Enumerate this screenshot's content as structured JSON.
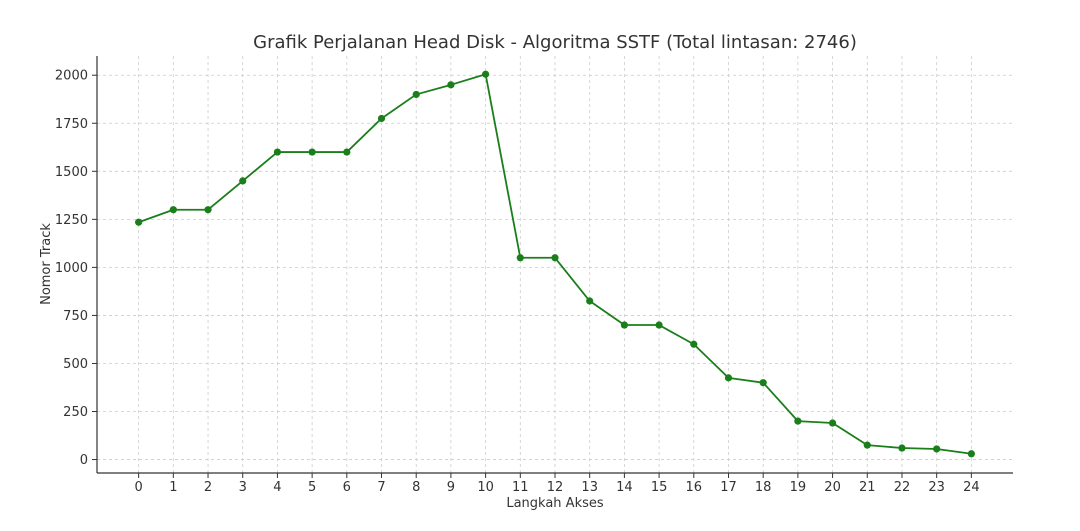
{
  "chart_data": {
    "type": "line",
    "title": "Grafik Perjalanan Head Disk - Algoritma SSTF (Total lintasan: 2746)",
    "xlabel": "Langkah Akses",
    "ylabel": "Nomor Track",
    "x": [
      0,
      1,
      2,
      3,
      4,
      5,
      6,
      7,
      8,
      9,
      10,
      11,
      12,
      13,
      14,
      15,
      16,
      17,
      18,
      19,
      20,
      21,
      22,
      23,
      24
    ],
    "x_tick_labels": [
      "0",
      "1",
      "2",
      "3",
      "4",
      "5",
      "6",
      "7",
      "8",
      "9",
      "10",
      "11",
      "12",
      "13",
      "14",
      "15",
      "16",
      "17",
      "18",
      "19",
      "20",
      "21",
      "22",
      "23",
      "24"
    ],
    "y_tick_values": [
      0,
      250,
      500,
      750,
      1000,
      1250,
      1500,
      1750,
      2000
    ],
    "y_tick_labels": [
      "0",
      "250",
      "500",
      "750",
      "1000",
      "1250",
      "1500",
      "1750",
      "2000"
    ],
    "xlim": [
      -1.2,
      25.2
    ],
    "ylim": [
      -70,
      2100
    ],
    "grid": true,
    "series": [
      {
        "values": [
          1235,
          1300,
          1300,
          1450,
          1600,
          1600,
          1600,
          1775,
          1900,
          1950,
          2005,
          1050,
          1050,
          825,
          700,
          700,
          600,
          425,
          400,
          200,
          190,
          75,
          60,
          55,
          30
        ],
        "color": "#1a7f1a"
      }
    ]
  }
}
